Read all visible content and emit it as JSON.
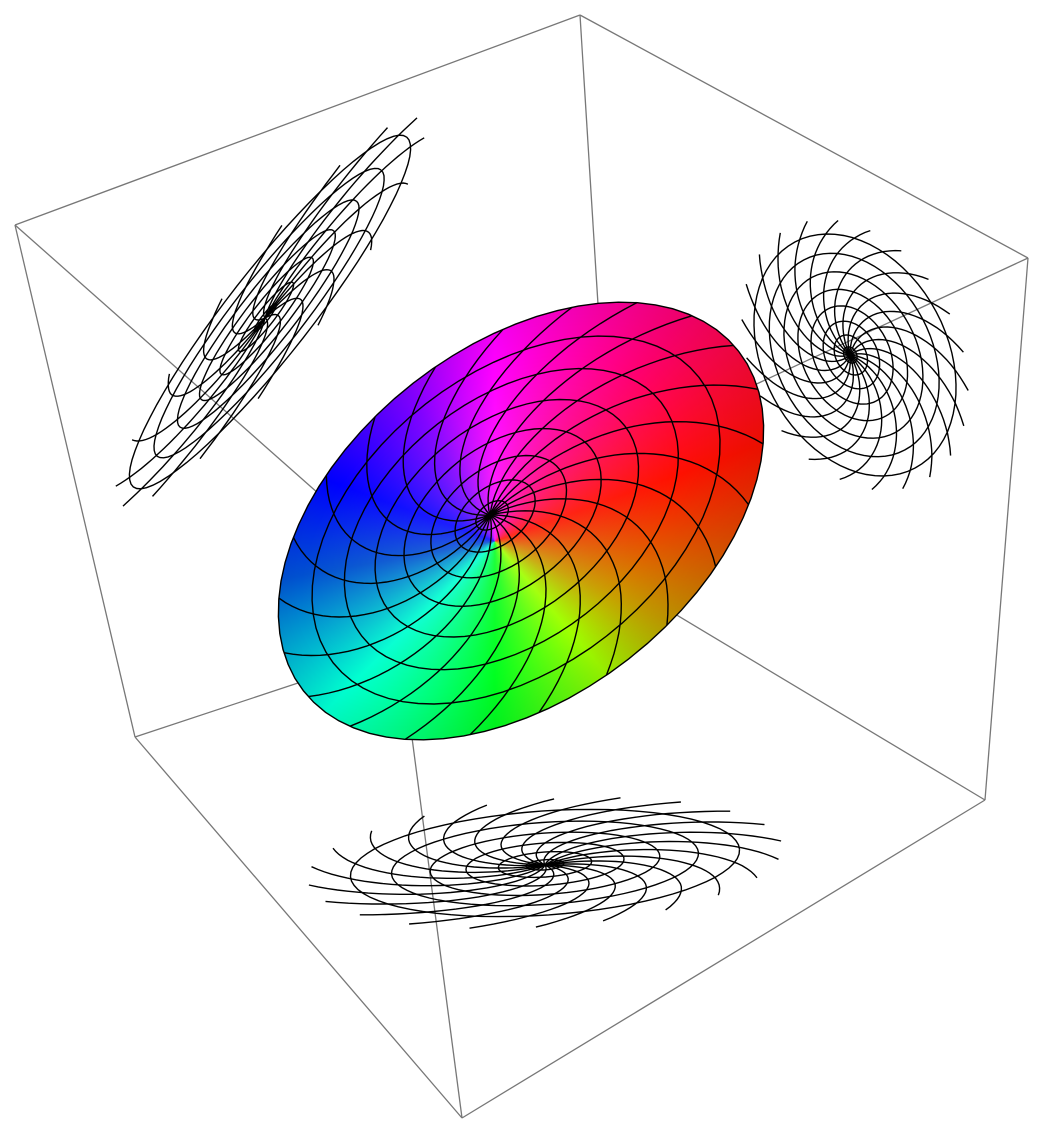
{
  "plot": {
    "kind": "3d-parametric-surface",
    "box": true,
    "colors": {
      "box_edge": "#777777",
      "mesh": "#000000",
      "surface_hues": [
        "#ff00ff",
        "#ff0000",
        "#ffff00",
        "#00ff00",
        "#00ffff",
        "#0000ff"
      ]
    },
    "projections": [
      "back-left-wall",
      "back-right-wall",
      "floor"
    ]
  }
}
